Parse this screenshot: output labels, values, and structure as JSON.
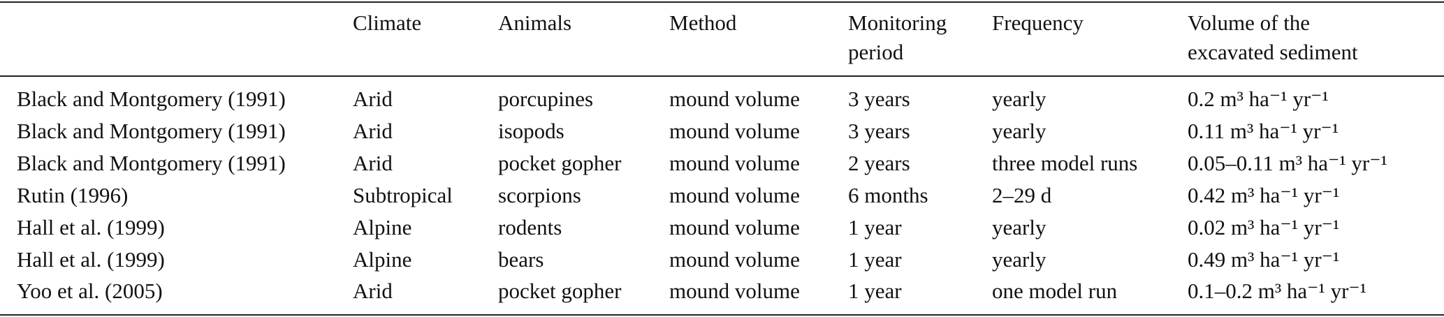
{
  "table": {
    "header": [
      "",
      "Climate",
      "Animals",
      "Method",
      "Monitoring period",
      "Frequency",
      "Volume of the excavated sediment"
    ],
    "rows": [
      [
        "Black and Montgomery (1991)",
        "Arid",
        "porcupines",
        "mound volume",
        "3 years",
        "yearly",
        "0.2 m³ ha⁻¹ yr⁻¹"
      ],
      [
        "Black and Montgomery (1991)",
        "Arid",
        "isopods",
        "mound volume",
        "3 years",
        "yearly",
        "0.11 m³ ha⁻¹ yr⁻¹"
      ],
      [
        "Black and Montgomery (1991)",
        "Arid",
        "pocket gopher",
        "mound volume",
        "2 years",
        "three model runs",
        "0.05–0.11 m³ ha⁻¹ yr⁻¹"
      ],
      [
        "Rutin (1996)",
        "Subtropical",
        "scorpions",
        "mound volume",
        "6 months",
        "2–29 d",
        "0.42 m³ ha⁻¹ yr⁻¹"
      ],
      [
        "Hall et al. (1999)",
        "Alpine",
        "rodents",
        "mound volume",
        "1 year",
        "yearly",
        "0.02 m³ ha⁻¹ yr⁻¹"
      ],
      [
        "Hall et al. (1999)",
        "Alpine",
        "bears",
        "mound volume",
        "1 year",
        "yearly",
        "0.49 m³ ha⁻¹ yr⁻¹"
      ],
      [
        "Yoo et al. (2005)",
        "Arid",
        "pocket gopher",
        "mound volume",
        "1 year",
        "one model run",
        "0.1–0.2 m³ ha⁻¹ yr⁻¹"
      ]
    ]
  }
}
